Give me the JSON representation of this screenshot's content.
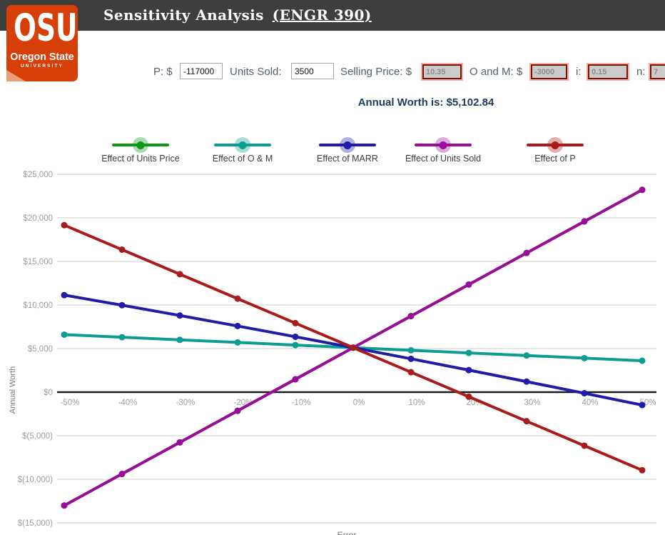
{
  "header": {
    "title": "Sensitivity Analysis",
    "course_link": "(ENGR 390)"
  },
  "logo": {
    "acronym": "OSU",
    "name": "Oregon State",
    "subname": "UNIVERSITY"
  },
  "inputs": {
    "p_label": "P: $",
    "p_value": "-117000",
    "units_sold_label": "Units Sold:",
    "units_sold_value": "3500",
    "selling_price_label": "Selling Price: $",
    "selling_price_value": "10.35",
    "o_and_m_label": "O and M: $",
    "o_and_m_value": "-3000",
    "i_label": "i:",
    "i_value": "0.15",
    "n_label": "n:",
    "n_value": "7"
  },
  "annual_worth": {
    "text": "Annual Worth is: $5,102.84"
  },
  "colors": {
    "topbar": "#3E3E3E",
    "brand_orange": "#D73F09",
    "gridline": "#CDCDCD",
    "zero_line": "#1A1A1A",
    "tick_text": "#9E9E9E",
    "axis_title_text": "#7A7A7A"
  },
  "chart_data": {
    "type": "line",
    "title": "",
    "xlabel": "Error",
    "ylabel": "Annual Worth",
    "grid": true,
    "legend_position": "top",
    "xlim": [
      -50,
      50
    ],
    "ylim": [
      -15000,
      25000
    ],
    "x": [
      -50,
      -40,
      -30,
      -20,
      -10,
      0,
      10,
      20,
      30,
      40,
      50
    ],
    "x_tick_labels": [
      "-50%",
      "-40%",
      "-30%",
      "-20%",
      "-10%",
      "0%",
      "10%",
      "20%",
      "30%",
      "40%",
      "50%"
    ],
    "y_ticks": [
      {
        "value": 25000,
        "label": "$25,000"
      },
      {
        "value": 20000,
        "label": "$20,000"
      },
      {
        "value": 15000,
        "label": "$15,000"
      },
      {
        "value": 10000,
        "label": "$10,000"
      },
      {
        "value": 5000,
        "label": "$5,000"
      },
      {
        "value": 0,
        "label": "$0"
      },
      {
        "value": -5000,
        "label": "$(5,000)"
      },
      {
        "value": -10000,
        "label": "$(10,000)"
      },
      {
        "value": -15000,
        "label": "$(15,000)"
      }
    ],
    "series": [
      {
        "name": "Effect of Units Price",
        "color": "#109618",
        "values": [
          -13009.66,
          -9387.16,
          -5764.66,
          -2142.16,
          1480.34,
          5102.84,
          8725.34,
          12347.84,
          15970.34,
          19592.84,
          23215.34
        ]
      },
      {
        "name": "Effect of O & M",
        "color": "#0D9C94",
        "values": [
          6602.84,
          6302.84,
          6002.84,
          5702.84,
          5402.84,
          5102.84,
          4802.84,
          4502.84,
          4202.84,
          3902.84,
          3602.84
        ]
      },
      {
        "name": "Effect of MARR",
        "color": "#201CA8",
        "values": [
          11135,
          9978,
          8796,
          7588,
          6357,
          5102.84,
          3826,
          2529,
          1210,
          -128,
          -1481
        ]
      },
      {
        "name": "Effect of Units Sold",
        "color": "#990D99",
        "values": [
          -13009.66,
          -9387.16,
          -5764.66,
          -2142.16,
          1480.34,
          5102.84,
          8725.34,
          12347.84,
          15970.34,
          19592.84,
          23215.34
        ]
      },
      {
        "name": "Effect of P",
        "color": "#A81C1C",
        "values": [
          19163.92,
          16351.7,
          13539.49,
          10727.27,
          7915.06,
          5102.84,
          2290.62,
          -521.59,
          -3333.81,
          -6146.02,
          -8958.24
        ]
      }
    ]
  }
}
